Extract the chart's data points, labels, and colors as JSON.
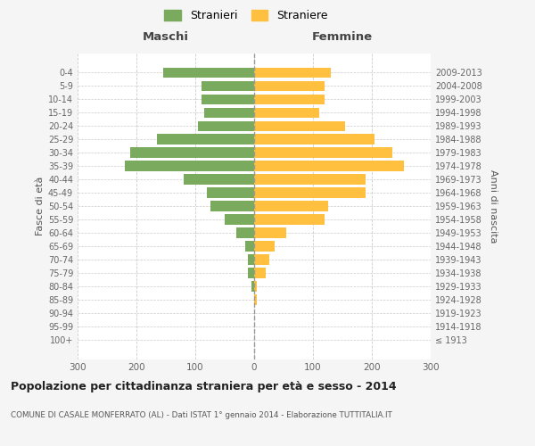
{
  "age_groups": [
    "100+",
    "95-99",
    "90-94",
    "85-89",
    "80-84",
    "75-79",
    "70-74",
    "65-69",
    "60-64",
    "55-59",
    "50-54",
    "45-49",
    "40-44",
    "35-39",
    "30-34",
    "25-29",
    "20-24",
    "15-19",
    "10-14",
    "5-9",
    "0-4"
  ],
  "birth_years": [
    "≤ 1913",
    "1914-1918",
    "1919-1923",
    "1924-1928",
    "1929-1933",
    "1934-1938",
    "1939-1943",
    "1944-1948",
    "1949-1953",
    "1954-1958",
    "1959-1963",
    "1964-1968",
    "1969-1973",
    "1974-1978",
    "1979-1983",
    "1984-1988",
    "1989-1993",
    "1994-1998",
    "1999-2003",
    "2004-2008",
    "2009-2013"
  ],
  "males": [
    0,
    0,
    0,
    0,
    5,
    10,
    10,
    15,
    30,
    50,
    75,
    80,
    120,
    220,
    210,
    165,
    95,
    85,
    90,
    90,
    155
  ],
  "females": [
    0,
    0,
    0,
    5,
    5,
    20,
    25,
    35,
    55,
    120,
    125,
    190,
    190,
    255,
    235,
    205,
    155,
    110,
    120,
    120,
    130
  ],
  "color_males": "#7aaa5e",
  "color_females": "#ffbf3f",
  "title": "Popolazione per cittadinanza straniera per età e sesso - 2014",
  "subtitle": "COMUNE DI CASALE MONFERRATO (AL) - Dati ISTAT 1° gennaio 2014 - Elaborazione TUTTITALIA.IT",
  "xlabel_left": "Maschi",
  "xlabel_right": "Femmine",
  "ylabel_left": "Fasce di età",
  "ylabel_right": "Anni di nascita",
  "legend_male": "Stranieri",
  "legend_female": "Straniere",
  "xlim": 300,
  "background_color": "#f5f5f5",
  "plot_bg_color": "#ffffff",
  "grid_color": "#cccccc"
}
